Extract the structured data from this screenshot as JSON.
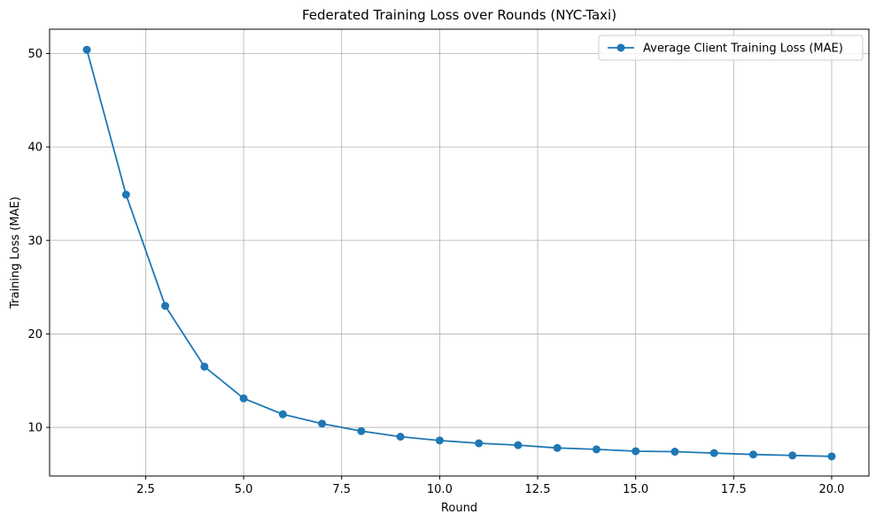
{
  "chart_data": {
    "type": "line",
    "title": "Federated Training Loss over Rounds (NYC-Taxi)",
    "xlabel": "Round",
    "ylabel": "Training Loss (MAE)",
    "xlim": [
      0.05,
      20.95
    ],
    "ylim": [
      4.8,
      52.6
    ],
    "xticks": [
      2.5,
      5.0,
      7.5,
      10.0,
      12.5,
      15.0,
      17.5,
      20.0
    ],
    "xtick_labels": [
      "2.5",
      "5.0",
      "7.5",
      "10.0",
      "12.5",
      "15.0",
      "17.5",
      "20.0"
    ],
    "yticks": [
      10,
      20,
      30,
      40,
      50
    ],
    "ytick_labels": [
      "10",
      "20",
      "30",
      "40",
      "50"
    ],
    "grid": true,
    "legend_position": "top-right",
    "series": [
      {
        "name": "Average Client Training Loss (MAE)",
        "color": "#1f77b4",
        "marker": "circle",
        "x": [
          1,
          2,
          3,
          4,
          5,
          6,
          7,
          8,
          9,
          10,
          11,
          12,
          13,
          14,
          15,
          16,
          17,
          18,
          19,
          20
        ],
        "values": [
          50.4,
          34.9,
          23.0,
          16.5,
          13.1,
          11.4,
          10.4,
          9.6,
          9.0,
          8.6,
          8.3,
          8.1,
          7.8,
          7.65,
          7.45,
          7.4,
          7.25,
          7.1,
          7.0,
          6.9
        ]
      }
    ]
  }
}
